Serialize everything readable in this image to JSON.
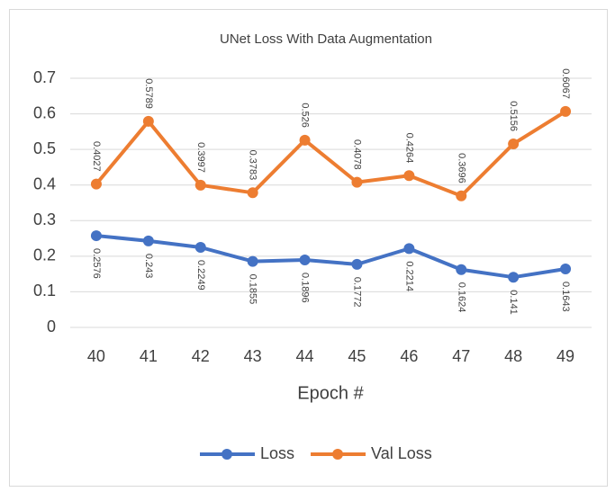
{
  "chart_data": {
    "type": "line",
    "title": "UNet Loss With Data Augmentation",
    "x_label": "Epoch #",
    "categories": [
      "40",
      "41",
      "42",
      "43",
      "44",
      "45",
      "46",
      "47",
      "48",
      "49"
    ],
    "series": [
      {
        "name": "Loss",
        "color": "#4472c4",
        "values": [
          0.2576,
          0.243,
          0.2249,
          0.1855,
          0.1896,
          0.1772,
          0.2214,
          0.1624,
          0.141,
          0.1643
        ]
      },
      {
        "name": "Val Loss",
        "color": "#ed7d31",
        "values": [
          0.4027,
          0.5789,
          0.3997,
          0.3783,
          0.526,
          0.4078,
          0.4264,
          0.3696,
          0.5156,
          0.6067
        ]
      }
    ],
    "ylim": [
      0,
      0.7
    ],
    "yticks": [
      0,
      0.1,
      0.2,
      0.3,
      0.4,
      0.5,
      0.6,
      0.7
    ],
    "grid": true,
    "legend": "bottom"
  }
}
